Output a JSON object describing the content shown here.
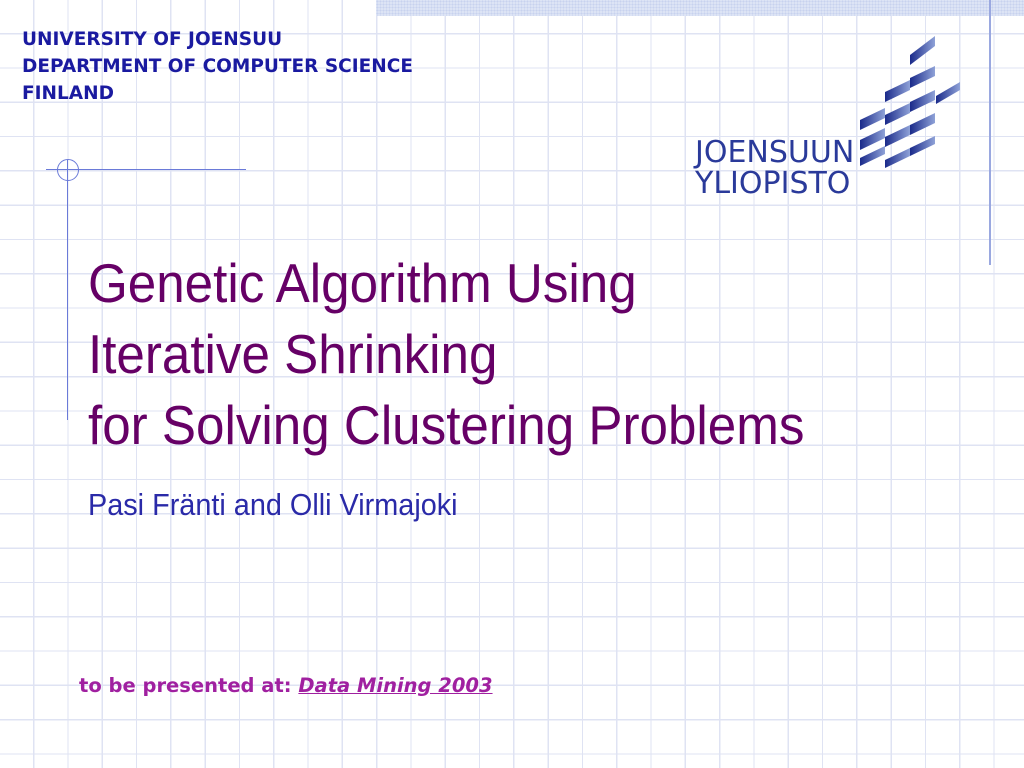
{
  "header": {
    "lines": [
      "UNIVERSITY OF JOENSUU",
      "DEPARTMENT OF COMPUTER SCIENCE",
      "FINLAND"
    ]
  },
  "logo": {
    "line1": "JOENSUUN",
    "line2": "YLIOPISTO",
    "color": "#2a3a9a"
  },
  "title": {
    "lines": [
      "Genetic Algorithm Using",
      "Iterative Shrinking",
      "for Solving Clustering Problems"
    ],
    "color": "#660066"
  },
  "authors": "Pasi Fränti and Olli Virmajoki",
  "footer": {
    "prefix": "to be presented at:",
    "link": "Data Mining 2003",
    "color": "#a020a0"
  }
}
